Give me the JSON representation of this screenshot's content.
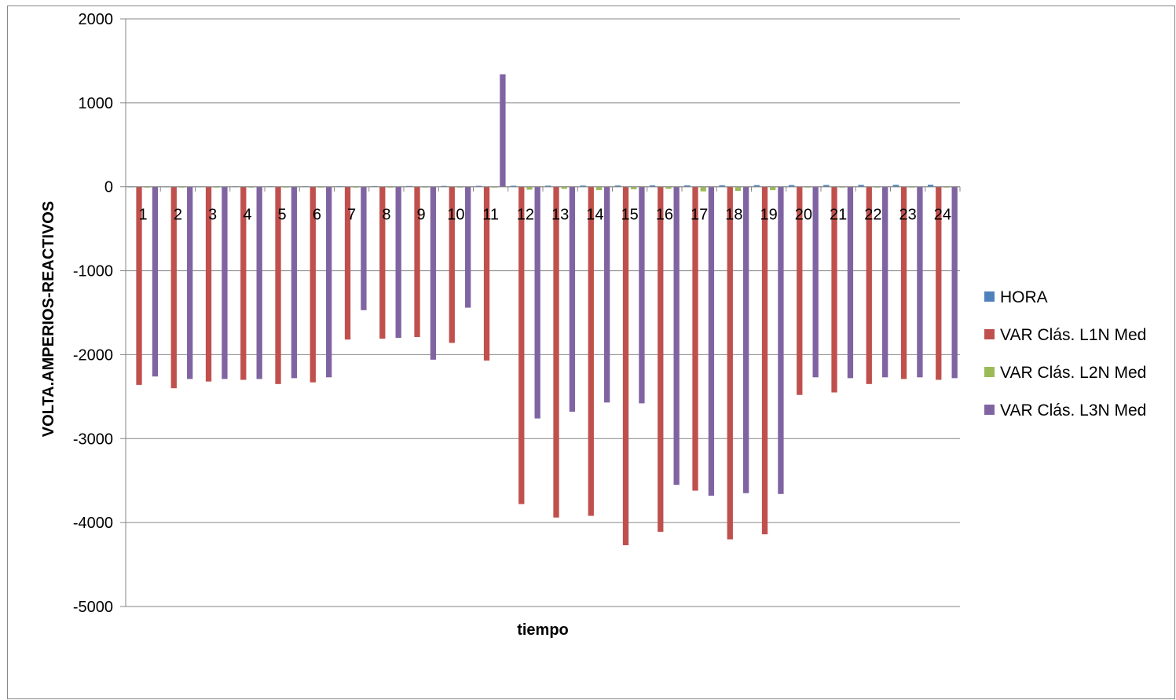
{
  "chart_data": {
    "type": "bar",
    "title": "",
    "xlabel": "tiempo",
    "ylabel": "VOLTA.AMPERIOS-REACTIVOS",
    "ylim": [
      -5000,
      2000
    ],
    "yticks": [
      2000,
      1000,
      0,
      -1000,
      -2000,
      -3000,
      -4000,
      -5000
    ],
    "grid": true,
    "legend_position": "right",
    "categories": [
      "1",
      "2",
      "3",
      "4",
      "5",
      "6",
      "7",
      "8",
      "9",
      "10",
      "11",
      "12",
      "13",
      "14",
      "15",
      "16",
      "17",
      "18",
      "19",
      "20",
      "21",
      "22",
      "23",
      "24"
    ],
    "series": [
      {
        "name": "HORA",
        "color": "#4F81BD",
        "values": [
          1,
          2,
          3,
          4,
          5,
          6,
          7,
          8,
          9,
          10,
          11,
          12,
          13,
          14,
          15,
          16,
          17,
          18,
          19,
          20,
          21,
          22,
          23,
          24
        ]
      },
      {
        "name": "VAR Clás. L1N Med",
        "color": "#C0504D",
        "values": [
          -2360,
          -2400,
          -2320,
          -2300,
          -2350,
          -2330,
          -1820,
          -1810,
          -1790,
          -1860,
          -2070,
          -3780,
          -3940,
          -3920,
          -4270,
          -4110,
          -3620,
          -4200,
          -4140,
          -2480,
          -2450,
          -2350,
          -2290,
          -2300
        ]
      },
      {
        "name": "VAR Clás. L2N Med",
        "color": "#9BBB59",
        "values": [
          -10,
          -10,
          -10,
          -10,
          -10,
          -10,
          -10,
          -10,
          -10,
          -10,
          -10,
          -35,
          -25,
          -40,
          -30,
          -25,
          -55,
          -50,
          -40,
          -10,
          -10,
          -10,
          -10,
          -10
        ]
      },
      {
        "name": "VAR Clás. L3N Med",
        "color": "#8064A2",
        "values": [
          -2260,
          -2290,
          -2290,
          -2290,
          -2280,
          -2270,
          -1470,
          -1800,
          -2060,
          -1440,
          1340,
          -2760,
          -2680,
          -2570,
          -2580,
          -3550,
          -3680,
          -3650,
          -3660,
          -2270,
          -2280,
          -2270,
          -2270,
          -2280
        ]
      }
    ]
  }
}
